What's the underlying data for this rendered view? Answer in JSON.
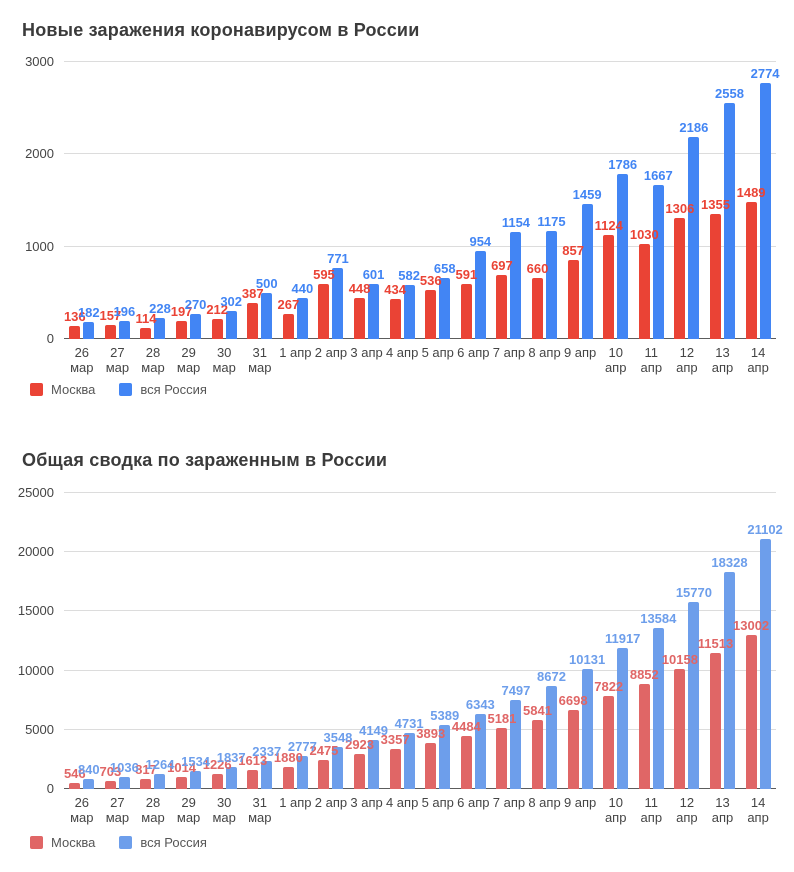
{
  "chart_data": [
    {
      "type": "bar",
      "title": "Новые заражения коронавирусом в России",
      "categories": [
        [
          "26",
          "мар"
        ],
        [
          "27",
          "мар"
        ],
        [
          "28",
          "мар"
        ],
        [
          "29",
          "мар"
        ],
        [
          "30",
          "мар"
        ],
        [
          "31",
          "мар"
        ],
        [
          "1 апр"
        ],
        [
          "2 апр"
        ],
        [
          "3 апр"
        ],
        [
          "4 апр"
        ],
        [
          "5 апр"
        ],
        [
          "6 апр"
        ],
        [
          "7 апр"
        ],
        [
          "8 апр"
        ],
        [
          "9 апр"
        ],
        [
          "10",
          "апр"
        ],
        [
          "11",
          "апр"
        ],
        [
          "12",
          "апр"
        ],
        [
          "13",
          "апр"
        ],
        [
          "14",
          "апр"
        ]
      ],
      "series": [
        {
          "key": "moscow",
          "name": "Москва",
          "color": "#ea4335",
          "values": [
            136,
            157,
            114,
            197,
            212,
            387,
            267,
            595,
            448,
            434,
            536,
            591,
            697,
            660,
            857,
            1124,
            1030,
            1306,
            1355,
            1489
          ]
        },
        {
          "key": "russia",
          "name": "вся Россия",
          "color": "#4285f4",
          "values": [
            182,
            196,
            228,
            270,
            302,
            500,
            440,
            771,
            601,
            582,
            658,
            954,
            1154,
            1175,
            1459,
            1786,
            1667,
            2186,
            2558,
            2774
          ]
        }
      ],
      "xlabel": "",
      "ylabel": "",
      "ylim": [
        0,
        3000
      ],
      "yticks": [
        0,
        1000,
        2000,
        3000
      ],
      "grid": true,
      "data_labels": true,
      "legend_position": "bottom"
    },
    {
      "type": "bar",
      "title": "Общая сводка по зараженным в России",
      "categories": [
        [
          "26",
          "мар"
        ],
        [
          "27",
          "мар"
        ],
        [
          "28",
          "мар"
        ],
        [
          "29",
          "мар"
        ],
        [
          "30",
          "мар"
        ],
        [
          "31",
          "мар"
        ],
        [
          "1 апр"
        ],
        [
          "2 апр"
        ],
        [
          "3 апр"
        ],
        [
          "4 апр"
        ],
        [
          "5 апр"
        ],
        [
          "6 апр"
        ],
        [
          "7 апр"
        ],
        [
          "8 апр"
        ],
        [
          "9 апр"
        ],
        [
          "10",
          "апр"
        ],
        [
          "11",
          "апр"
        ],
        [
          "12",
          "апр"
        ],
        [
          "13",
          "апр"
        ],
        [
          "14",
          "апр"
        ]
      ],
      "series": [
        {
          "key": "moscow",
          "name": "Москва",
          "color": "#e06666",
          "values": [
            546,
            703,
            817,
            1014,
            1226,
            1613,
            1880,
            2475,
            2923,
            3357,
            3893,
            4484,
            5181,
            5841,
            6698,
            7822,
            8852,
            10158,
            11513,
            13002
          ]
        },
        {
          "key": "russia",
          "name": "вся Россия",
          "color": "#6d9eeb",
          "values": [
            840,
            1036,
            1264,
            1534,
            1837,
            2337,
            2777,
            3548,
            4149,
            4731,
            5389,
            6343,
            7497,
            8672,
            10131,
            11917,
            13584,
            15770,
            18328,
            21102
          ]
        }
      ],
      "xlabel": "",
      "ylabel": "",
      "ylim": [
        0,
        25000
      ],
      "yticks": [
        0,
        5000,
        10000,
        15000,
        20000,
        25000
      ],
      "grid": true,
      "data_labels": true,
      "legend_position": "bottom"
    }
  ]
}
